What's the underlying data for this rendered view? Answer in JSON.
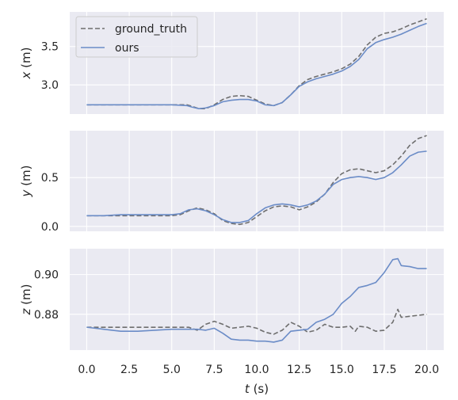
{
  "chart_data": {
    "type": "line",
    "legend": {
      "placement": "top-left",
      "entries": [
        "ground_truth",
        "ours"
      ]
    },
    "x_axis": {
      "label_italic": "t",
      "label_unit": "(s)",
      "range": [
        -1,
        21
      ],
      "ticks": [
        0.0,
        2.5,
        5.0,
        7.5,
        10.0,
        12.5,
        15.0,
        17.5,
        20.0
      ],
      "tick_labels": [
        "0.0",
        "2.5",
        "5.0",
        "7.5",
        "10.0",
        "12.5",
        "15.0",
        "17.5",
        "20.0"
      ]
    },
    "grid": true,
    "style": {
      "ground_truth_color": "#6e6e6e",
      "ours_color": "#6b8cc7",
      "panel_background": "#eaeaf2",
      "grid_color": "#ffffff"
    },
    "panels": [
      {
        "ylabel_italic": "x",
        "ylabel_unit": "(m)",
        "ylim": [
          2.62,
          3.95
        ],
        "yticks": [
          3.0,
          3.5
        ],
        "ytick_labels": [
          "3.0",
          "3.5"
        ],
        "series": [
          {
            "name": "ground_truth",
            "style": "dashed",
            "x": [
              0,
              1,
              2,
              3,
              4,
              5,
              5.9,
              6.2,
              6.6,
              7.0,
              7.5,
              8.0,
              8.5,
              9.0,
              9.5,
              10.0,
              10.5,
              11.0,
              11.5,
              12.0,
              12.5,
              13.0,
              13.5,
              14.0,
              14.5,
              15.0,
              15.5,
              16.0,
              16.5,
              17.0,
              17.5,
              18.0,
              18.5,
              19.0,
              19.5,
              20.0
            ],
            "y": [
              2.74,
              2.74,
              2.74,
              2.74,
              2.74,
              2.74,
              2.74,
              2.72,
              2.69,
              2.69,
              2.74,
              2.81,
              2.85,
              2.86,
              2.85,
              2.8,
              2.75,
              2.73,
              2.77,
              2.87,
              2.99,
              3.07,
              3.11,
              3.14,
              3.17,
              3.21,
              3.27,
              3.37,
              3.52,
              3.62,
              3.67,
              3.69,
              3.73,
              3.78,
              3.82,
              3.86
            ]
          },
          {
            "name": "ours",
            "style": "solid",
            "x": [
              0,
              1,
              2,
              3,
              4,
              5,
              5.9,
              6.2,
              6.6,
              7.0,
              7.5,
              8.0,
              8.5,
              9.0,
              9.5,
              10.0,
              10.5,
              11.0,
              11.5,
              12.0,
              12.5,
              13.0,
              13.5,
              14.0,
              14.5,
              15.0,
              15.5,
              16.0,
              16.5,
              17.0,
              17.5,
              18.0,
              18.5,
              19.0,
              19.5,
              20.0
            ],
            "y": [
              2.74,
              2.74,
              2.74,
              2.74,
              2.74,
              2.74,
              2.73,
              2.71,
              2.69,
              2.7,
              2.73,
              2.78,
              2.8,
              2.81,
              2.81,
              2.79,
              2.74,
              2.73,
              2.77,
              2.87,
              2.98,
              3.04,
              3.08,
              3.11,
              3.14,
              3.18,
              3.24,
              3.33,
              3.47,
              3.55,
              3.59,
              3.62,
              3.66,
              3.71,
              3.76,
              3.8
            ]
          }
        ]
      },
      {
        "ylabel_italic": "y",
        "ylabel_unit": "(m)",
        "ylim": [
          -0.05,
          0.98
        ],
        "yticks": [
          0.0,
          0.5
        ],
        "ytick_labels": [
          "0.0",
          "0.5"
        ],
        "series": [
          {
            "name": "ground_truth",
            "style": "dashed",
            "x": [
              0,
              1,
              2,
              3,
              4,
              5,
              5.5,
              6.0,
              6.5,
              7.0,
              7.5,
              8.0,
              8.5,
              9.0,
              9.5,
              10.0,
              10.5,
              11.0,
              11.5,
              12.0,
              12.5,
              13.0,
              13.5,
              14.0,
              14.5,
              15.0,
              15.5,
              16.0,
              16.5,
              17.0,
              17.5,
              18.0,
              18.5,
              19.0,
              19.5,
              20.0
            ],
            "y": [
              0.11,
              0.11,
              0.11,
              0.11,
              0.11,
              0.11,
              0.12,
              0.16,
              0.19,
              0.17,
              0.13,
              0.06,
              0.03,
              0.02,
              0.04,
              0.1,
              0.16,
              0.2,
              0.21,
              0.2,
              0.17,
              0.2,
              0.25,
              0.33,
              0.45,
              0.54,
              0.58,
              0.59,
              0.57,
              0.55,
              0.57,
              0.63,
              0.72,
              0.83,
              0.9,
              0.93
            ]
          },
          {
            "name": "ours",
            "style": "solid",
            "x": [
              0,
              1,
              2,
              3,
              4,
              5,
              5.5,
              6.0,
              6.5,
              7.0,
              7.5,
              8.0,
              8.5,
              9.0,
              9.5,
              10.0,
              10.5,
              11.0,
              11.5,
              12.0,
              12.5,
              13.0,
              13.5,
              14.0,
              14.5,
              15.0,
              15.5,
              16.0,
              16.5,
              17.0,
              17.5,
              18.0,
              18.5,
              19.0,
              19.5,
              20.0
            ],
            "y": [
              0.11,
              0.11,
              0.12,
              0.12,
              0.12,
              0.12,
              0.13,
              0.17,
              0.18,
              0.16,
              0.12,
              0.07,
              0.04,
              0.04,
              0.06,
              0.13,
              0.19,
              0.22,
              0.23,
              0.22,
              0.2,
              0.22,
              0.26,
              0.33,
              0.43,
              0.48,
              0.5,
              0.51,
              0.5,
              0.48,
              0.5,
              0.55,
              0.63,
              0.72,
              0.76,
              0.77
            ]
          }
        ]
      },
      {
        "ylabel_italic": "z",
        "ylabel_unit": "(m)",
        "ylim": [
          0.862,
          0.913
        ],
        "yticks": [
          0.88,
          0.9
        ],
        "ytick_labels": [
          "0.88",
          "0.90"
        ],
        "series": [
          {
            "name": "ground_truth",
            "style": "dashed",
            "x": [
              0,
              1,
              2,
              3,
              4,
              5,
              6.0,
              6.5,
              7.0,
              7.5,
              8.0,
              8.5,
              9.0,
              9.5,
              10.0,
              10.5,
              11.0,
              11.5,
              12.0,
              12.5,
              13.0,
              13.5,
              14.0,
              14.5,
              15.0,
              15.5,
              15.8,
              16.0,
              16.5,
              17.0,
              17.5,
              18.0,
              18.3,
              18.5,
              19.0,
              19.5,
              20.0
            ],
            "y": [
              0.8735,
              0.8735,
              0.8735,
              0.8735,
              0.8735,
              0.8735,
              0.8735,
              0.872,
              0.875,
              0.8765,
              0.875,
              0.873,
              0.8735,
              0.874,
              0.873,
              0.871,
              0.87,
              0.872,
              0.876,
              0.874,
              0.871,
              0.872,
              0.875,
              0.8735,
              0.8735,
              0.874,
              0.8715,
              0.874,
              0.8735,
              0.8715,
              0.872,
              0.876,
              0.8825,
              0.8785,
              0.879,
              0.8795,
              0.88
            ]
          },
          {
            "name": "ours",
            "style": "solid",
            "x": [
              0,
              1,
              2,
              3,
              4,
              5,
              6.0,
              6.5,
              7.0,
              7.5,
              8.0,
              8.5,
              9.0,
              9.5,
              10.0,
              10.5,
              11.0,
              11.5,
              12.0,
              12.5,
              13.0,
              13.5,
              14.0,
              14.5,
              15.0,
              15.5,
              16.0,
              16.5,
              17.0,
              17.5,
              18.0,
              18.3,
              18.5,
              19.0,
              19.5,
              20.0
            ],
            "y": [
              0.8735,
              0.8725,
              0.8715,
              0.8715,
              0.872,
              0.8725,
              0.8725,
              0.8725,
              0.872,
              0.873,
              0.8705,
              0.8675,
              0.867,
              0.867,
              0.8665,
              0.8665,
              0.866,
              0.867,
              0.8715,
              0.872,
              0.8725,
              0.876,
              0.8775,
              0.88,
              0.8855,
              0.889,
              0.8935,
              0.8945,
              0.896,
              0.901,
              0.9075,
              0.908,
              0.9045,
              0.904,
              0.903,
              0.903
            ]
          }
        ]
      }
    ]
  }
}
